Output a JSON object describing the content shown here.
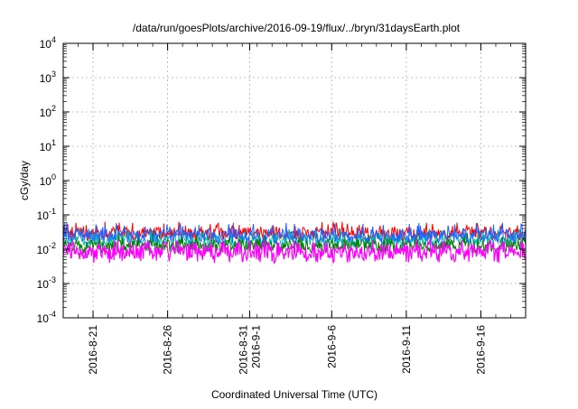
{
  "chart_data": {
    "type": "line",
    "title": "/data/run/goesPlots/archive/2016-09-19/flux/../bryn/31daysEarth.plot",
    "xlabel": "Coordinated Universal Time (UTC)",
    "ylabel": "cGy/day",
    "yscale": "log",
    "ylim": [
      0.0001,
      10000
    ],
    "xlim": [
      "2016-08-19",
      "2016-09-19"
    ],
    "grid": true,
    "x_ticks": [
      "2016-8-21",
      "2016-8-26",
      "2016-8-31",
      "2016-9-1",
      "2016-9-6",
      "2016-9-11",
      "2016-9-16"
    ],
    "x_tick_lines": [
      [
        "2016-8-21"
      ],
      [
        "2016-8-26"
      ],
      [
        "2016-8-31",
        "2016-9-1"
      ],
      [
        "2016-9-6"
      ],
      [
        "2016-9-11"
      ],
      [
        "2016-9-16"
      ]
    ],
    "y_ticks": [
      {
        "base": "10",
        "exp": "-4"
      },
      {
        "base": "10",
        "exp": "-3"
      },
      {
        "base": "10",
        "exp": "-2"
      },
      {
        "base": "10",
        "exp": "-1"
      },
      {
        "base": "10",
        "exp": "0"
      },
      {
        "base": "10",
        "exp": "1"
      },
      {
        "base": "10",
        "exp": "2"
      },
      {
        "base": "10",
        "exp": "3"
      },
      {
        "base": "10",
        "exp": "4"
      }
    ],
    "series_colors": [
      "#ff0000",
      "#00b0b0",
      "#008000",
      "#2060ff",
      "#ff00ff"
    ],
    "series": [
      {
        "color": "#ff0000",
        "baseline": 0.026,
        "peak": 0.065
      },
      {
        "color": "#00b0b0",
        "baseline": 0.016,
        "peak": 0.04
      },
      {
        "color": "#008000",
        "baseline": 0.011,
        "peak": 0.03
      },
      {
        "color": "#2060ff",
        "baseline": 0.022,
        "peak": 0.06
      },
      {
        "color": "#ff00ff",
        "baseline": 0.006,
        "peak": 0.025
      }
    ]
  }
}
